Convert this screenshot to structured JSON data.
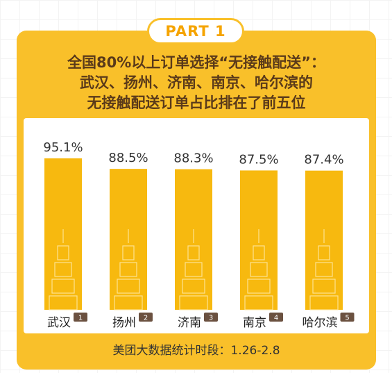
{
  "badge": "PART 1",
  "title_lines": [
    "全国80%以上订单选择“无接触配送”：",
    "武汉、扬州、济南、南京、哈尔滨的",
    "无接触配送订单占比排在了前五位"
  ],
  "footer": "美团大数据统计时段：1.26-2.8",
  "colors": {
    "accent": "#f9c02a",
    "bar": "#f7b90f",
    "text": "#5a3a1a"
  },
  "chart_data": {
    "type": "bar",
    "categories": [
      "武汉",
      "扬州",
      "济南",
      "南京",
      "哈尔滨"
    ],
    "ranks": [
      "1",
      "2",
      "3",
      "4",
      "5"
    ],
    "values": [
      95.1,
      88.5,
      88.3,
      87.5,
      87.4
    ],
    "value_labels": [
      "95.1%",
      "88.5%",
      "88.3%",
      "87.5%",
      "87.4%"
    ],
    "title": "",
    "xlabel": "",
    "ylabel": "",
    "ylim": [
      0,
      100
    ],
    "grid": false
  }
}
